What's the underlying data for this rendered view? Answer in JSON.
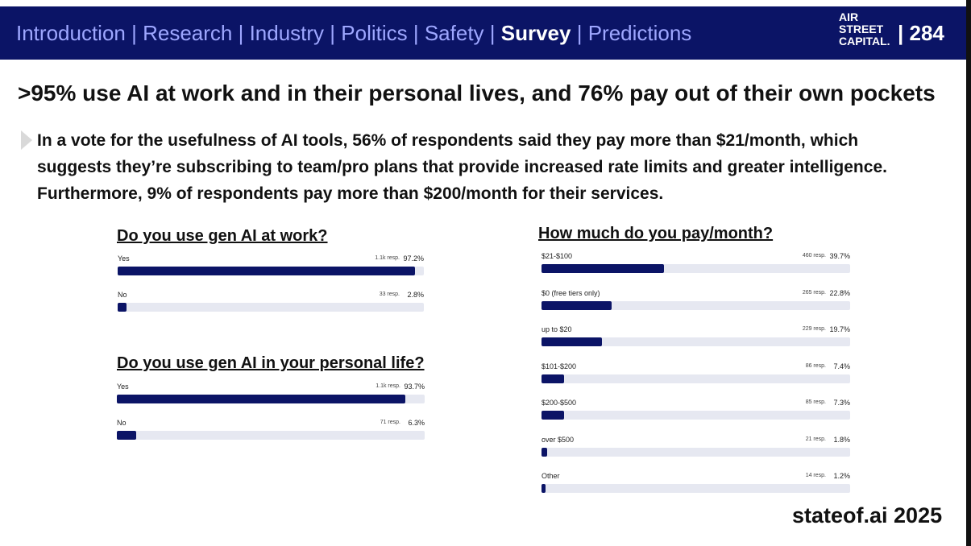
{
  "nav": {
    "items": [
      "Introduction",
      "Research",
      "Industry",
      "Politics",
      "Safety",
      "Survey",
      "Predictions"
    ],
    "active_index": 5,
    "separator": "|"
  },
  "logo": {
    "lines": [
      "AIR",
      "STREET",
      "CAPITAL."
    ]
  },
  "page_number": "| 284",
  "title": ">95% use AI at work and in their personal lives, and 76% pay out of their own pockets",
  "body": "In a vote for the usefulness of AI tools, 56% of respondents said they pay more than $21/month, which suggests they’re subscribing to team/pro plans that provide increased rate limits and greater intelligence. Furthermore, 9% of respondents pay more than $200/month for their services.",
  "footer": "stateof.ai 2025",
  "colors": {
    "header": "#0b1466",
    "nav_text": "#9ea7ff",
    "bar": "#0b1466",
    "track": "#e6e8f1"
  },
  "chart_data": [
    {
      "type": "bar",
      "orientation": "horizontal",
      "title": "Do you use gen AI at work?",
      "categories": [
        "Yes",
        "No"
      ],
      "values": [
        97.2,
        2.8
      ],
      "value_labels": [
        "97.2%",
        "2.8%"
      ],
      "responses": [
        "1.1k resp.",
        "33 resp."
      ],
      "xlim": [
        0,
        100
      ]
    },
    {
      "type": "bar",
      "orientation": "horizontal",
      "title": "Do you use gen AI in your personal life?",
      "categories": [
        "Yes",
        "No"
      ],
      "values": [
        93.7,
        6.3
      ],
      "value_labels": [
        "93.7%",
        "6.3%"
      ],
      "responses": [
        "1.1k resp.",
        "71 resp."
      ],
      "xlim": [
        0,
        100
      ]
    },
    {
      "type": "bar",
      "orientation": "horizontal",
      "title": "How much do you pay/month?",
      "categories": [
        "$21-$100",
        "$0 (free tiers only)",
        "up to $20",
        "$101-$200",
        "$200-$500",
        "over $500",
        "Other"
      ],
      "values": [
        39.7,
        22.8,
        19.7,
        7.4,
        7.3,
        1.8,
        1.2
      ],
      "value_labels": [
        "39.7%",
        "22.8%",
        "19.7%",
        "7.4%",
        "7.3%",
        "1.8%",
        "1.2%"
      ],
      "responses": [
        "460 resp.",
        "265 resp.",
        "229 resp.",
        "86 resp.",
        "85 resp.",
        "21 resp.",
        "14 resp."
      ],
      "xlim": [
        0,
        100
      ]
    }
  ]
}
